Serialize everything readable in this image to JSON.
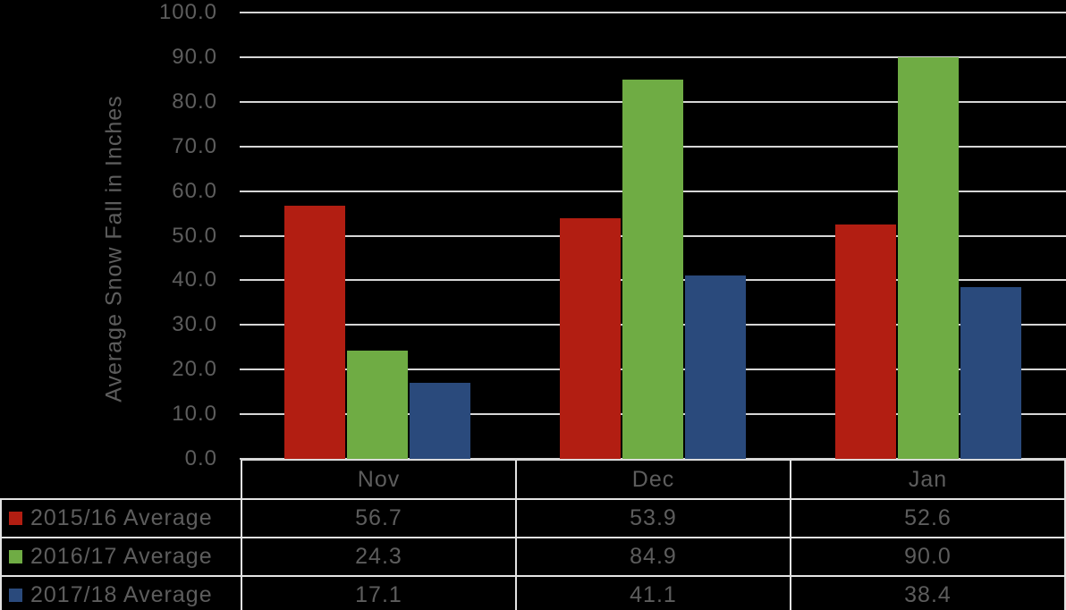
{
  "colors": {
    "background": "#000000",
    "text": "#5d5d5d",
    "gridline": "#d6d6d6",
    "table_border": "#e3e3e3",
    "series_red": "#b21e12",
    "series_green": "#6fac44",
    "series_blue": "#2a4a7c"
  },
  "chart_data": {
    "type": "bar",
    "title": "",
    "ylabel": "Average Snow Fall in Inches",
    "xlabel": "",
    "categories": [
      "Nov",
      "Dec",
      "Jan"
    ],
    "series": [
      {
        "name": "2015/16 Average",
        "color": "#b21e12",
        "values": [
          56.7,
          53.9,
          52.6
        ]
      },
      {
        "name": "2016/17 Average",
        "color": "#6fac44",
        "values": [
          24.3,
          84.9,
          90.0
        ]
      },
      {
        "name": "2017/18 Average",
        "color": "#2a4a7c",
        "values": [
          17.1,
          41.1,
          38.4
        ]
      }
    ],
    "ylim": [
      0,
      100
    ],
    "ytick_step": 10,
    "yticks": [
      "100.0",
      "90.0",
      "80.0",
      "70.0",
      "60.0",
      "50.0",
      "40.0",
      "30.0",
      "20.0",
      "10.0",
      "0.0"
    ],
    "grid": true,
    "legend_position": "data-table-left",
    "data_table_shown": true
  },
  "table": {
    "corner_label": "",
    "columns": [
      "Nov",
      "Dec",
      "Jan"
    ],
    "rows": [
      {
        "label": "2015/16 Average",
        "key_color": "#b21e12",
        "values": [
          "56.7",
          "53.9",
          "52.6"
        ]
      },
      {
        "label": "2016/17 Average",
        "key_color": "#6fac44",
        "values": [
          "24.3",
          "84.9",
          "90.0"
        ]
      },
      {
        "label": "2017/18 Average",
        "key_color": "#2a4a7c",
        "values": [
          "17.1",
          "41.1",
          "38.4"
        ]
      }
    ]
  }
}
